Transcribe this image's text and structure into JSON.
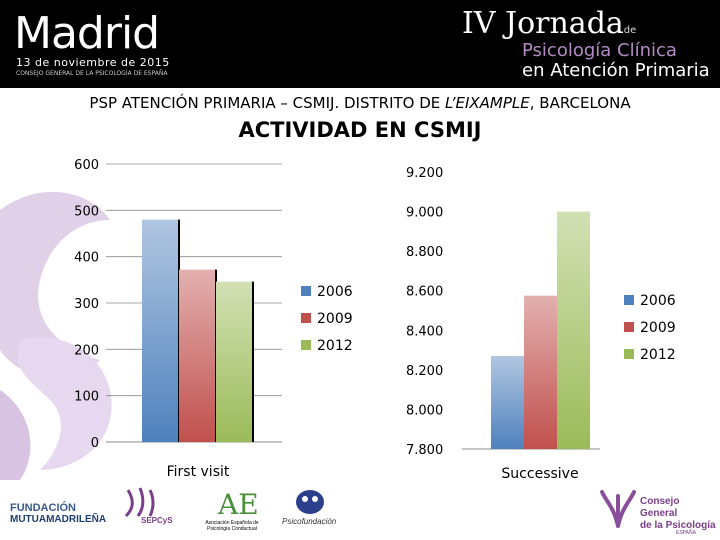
{
  "header": {
    "city": "Madrid",
    "date": "13 de noviembre de 2015",
    "org": "CONSEJO GENERAL DE LA PSICOLOGÍA DE ESPAÑA",
    "jornada_main": "IV Jornada",
    "jornada_de": "de",
    "jornada_line2": "Psicología Clínica",
    "jornada_line3": "en Atención Primaria"
  },
  "slide": {
    "subtitle_pre": "PSP ATENCIÓN PRIMARIA – CSMIJ. DISTRITO DE ",
    "subtitle_em": "L’EIXAMPLE",
    "subtitle_post": ", BARCELONA",
    "title": "ACTIVIDAD EN CSMIJ"
  },
  "chart_data": [
    {
      "type": "bar",
      "categories": [
        "First visit"
      ],
      "series": [
        {
          "name": "2006",
          "values": [
            480
          ],
          "color": "#4f81bd"
        },
        {
          "name": "2009",
          "values": [
            372
          ],
          "color": "#c0504d"
        },
        {
          "name": "2012",
          "values": [
            346
          ],
          "color": "#9bbb59"
        }
      ],
      "ylim": [
        0,
        600
      ],
      "yticks": [
        0,
        100,
        200,
        300,
        400,
        500,
        600
      ],
      "ytick_labels": [
        "0",
        "100",
        "200",
        "300",
        "400",
        "500",
        "600"
      ],
      "grid": true,
      "legend": "right"
    },
    {
      "type": "bar",
      "categories": [
        "Successive"
      ],
      "series": [
        {
          "name": "2006",
          "values": [
            8270
          ],
          "color": "#4f81bd"
        },
        {
          "name": "2009",
          "values": [
            8575
          ],
          "color": "#c0504d"
        },
        {
          "name": "2012",
          "values": [
            9000
          ],
          "color": "#9bbb59"
        }
      ],
      "ylim": [
        7800,
        9200
      ],
      "yticks": [
        7800,
        8000,
        8200,
        8400,
        8600,
        8800,
        9000,
        9200
      ],
      "ytick_labels": [
        "7.800",
        "8.000",
        "8.200",
        "8.400",
        "8.600",
        "8.800",
        "9.000",
        "9.200"
      ],
      "grid": false,
      "legend": "right"
    }
  ],
  "footer": {
    "fundacion_line1": "FUNDACIÓN",
    "fundacion_line2": "MUTUAMADRILEÑA",
    "sepcys": "SEPCyS",
    "aepc_mark": "AE",
    "aepc_text": "Asociación Española de Psicología Conductual",
    "psicofundacion": "Psicofundación",
    "cgp_line1": "Consejo General",
    "cgp_line2": "de la Psicología",
    "cgp_line3": "ESPAÑA"
  }
}
